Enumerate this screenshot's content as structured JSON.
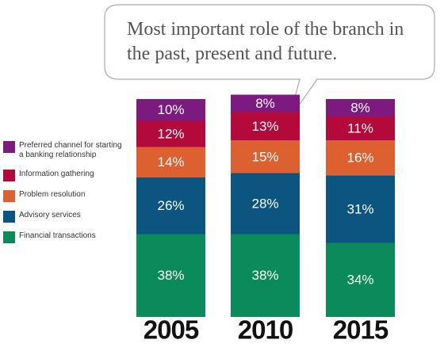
{
  "chart_data": {
    "type": "stacked-bar",
    "title": "Most important role of the branch in the past, present and future.",
    "categories": [
      "2005",
      "2010",
      "2015"
    ],
    "series": [
      {
        "name": "Financial transactions",
        "color": "#0b8a5b",
        "values": [
          38,
          38,
          34
        ],
        "value_labels": [
          "38%",
          "38%",
          "34%"
        ]
      },
      {
        "name": "Advisory services",
        "color": "#0b5580",
        "values": [
          26,
          28,
          31
        ],
        "value_labels": [
          "26%",
          "28%",
          "31%"
        ]
      },
      {
        "name": "Problem resolution",
        "color": "#dc6030",
        "values": [
          14,
          15,
          16
        ],
        "value_labels": [
          "14%",
          "15%",
          "16%"
        ]
      },
      {
        "name": "Information gathering",
        "color": "#b3093b",
        "values": [
          12,
          13,
          11
        ],
        "value_labels": [
          "12%",
          "13%",
          "11%"
        ]
      },
      {
        "name": "Preferred channel for starting a banking relationship",
        "color": "#7c1a7f",
        "values": [
          10,
          8,
          8
        ],
        "value_labels": [
          "10%",
          "8%",
          "8%"
        ]
      }
    ]
  }
}
